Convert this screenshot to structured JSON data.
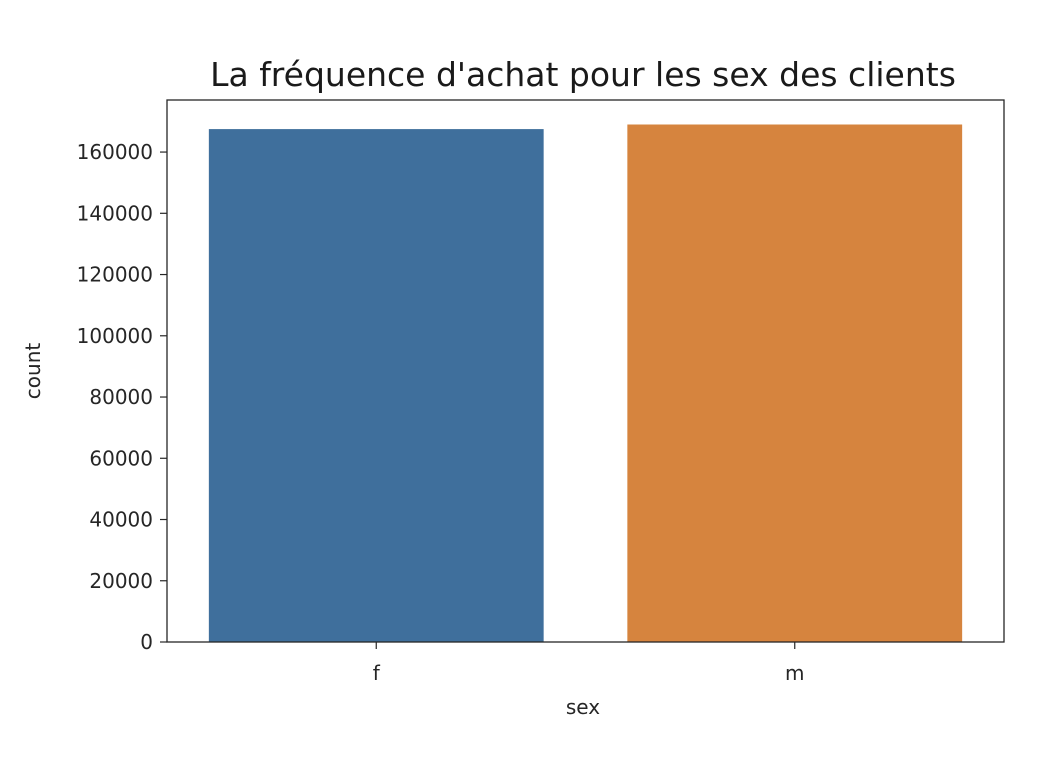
{
  "chart_data": {
    "type": "bar",
    "title": "La fréquence d'achat pour les sex des clients",
    "xlabel": "sex",
    "ylabel": "count",
    "categories": [
      "f",
      "m"
    ],
    "values": [
      167500,
      169000
    ],
    "colors": [
      "#3f6f9c",
      "#d6843e"
    ],
    "ylim": [
      0,
      177000
    ],
    "yticks": [
      0,
      20000,
      40000,
      60000,
      80000,
      100000,
      120000,
      140000,
      160000
    ],
    "grid": false,
    "legend": "none"
  }
}
